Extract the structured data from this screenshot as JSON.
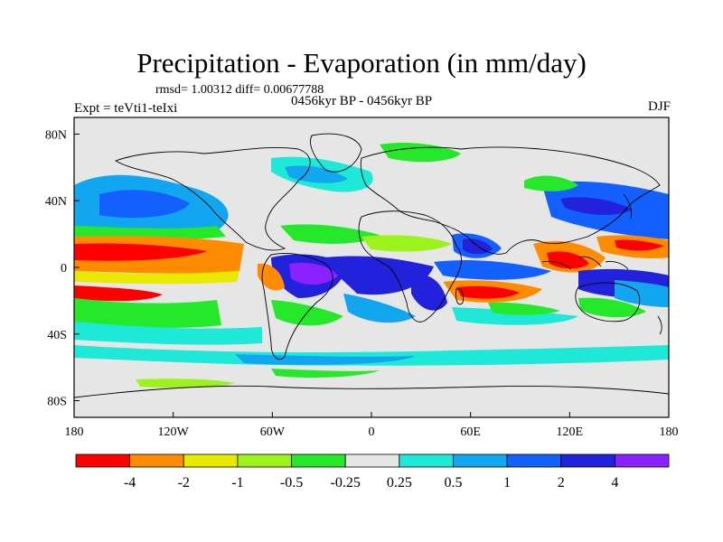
{
  "figure": {
    "title": "Precipitation - Evaporation (in mm/day)",
    "stats": "rmsd= 1.00312 diff= 0.00677788",
    "left_label": "Expt = teVti1-teIxi",
    "center_label": "0456kyr BP - 0456kyr BP",
    "right_label": "DJF"
  },
  "map": {
    "lat_ticks": [
      "80N",
      "40N",
      "0",
      "40S",
      "80S"
    ],
    "lon_ticks": [
      "180",
      "120W",
      "60W",
      "0",
      "60E",
      "120E",
      "180"
    ],
    "lat_values": [
      80,
      40,
      0,
      -40,
      -80
    ],
    "lon_values": [
      -180,
      -120,
      -60,
      0,
      60,
      120,
      180
    ],
    "extent": {
      "lon": [
        -180,
        180
      ],
      "lat": [
        -90,
        90
      ]
    }
  },
  "colorbar": {
    "colors": [
      "#ff0000",
      "#ff8c00",
      "#e8e800",
      "#9cf21b",
      "#26e82a",
      "#e6e6e6",
      "#1ee8d8",
      "#12a6f0",
      "#1460ff",
      "#2222dc",
      "#8a22ff"
    ],
    "labels": [
      "-4",
      "-2",
      "-1",
      "-0.5",
      "-0.25",
      "0.25",
      "0.5",
      "1",
      "2",
      "4"
    ]
  }
}
